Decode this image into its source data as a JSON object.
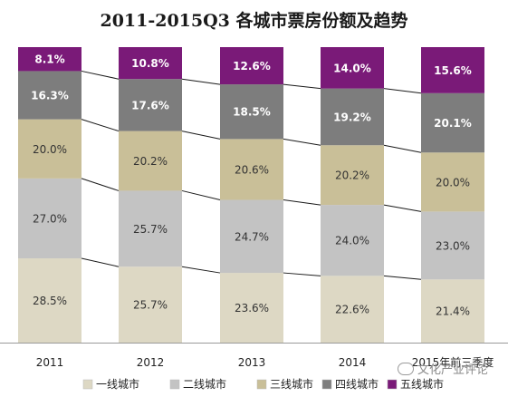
{
  "title": "2011-2015Q3 各城市票房份额及趋势",
  "watermark": "文化产业评论",
  "chart_data": {
    "type": "bar",
    "stacked": true,
    "categories": [
      "2011",
      "2012",
      "2013",
      "2014",
      "2015年前三季度"
    ],
    "series": [
      {
        "name": "一线城市",
        "color": "#ddd8c4",
        "values": [
          28.5,
          25.7,
          23.6,
          22.6,
          21.4
        ],
        "labels": [
          "28.5%",
          "25.7%",
          "23.6%",
          "22.6%",
          "21.4%"
        ]
      },
      {
        "name": "二线城市",
        "color": "#c3c3c3",
        "values": [
          27.0,
          25.7,
          24.7,
          24.0,
          23.0
        ],
        "labels": [
          "27.0%",
          "25.7%",
          "24.7%",
          "24.0%",
          "23.0%"
        ]
      },
      {
        "name": "三线城市",
        "color": "#c9bf98",
        "values": [
          20.0,
          20.2,
          20.6,
          20.2,
          20.0
        ],
        "labels": [
          "20.0%",
          "20.2%",
          "20.6%",
          "20.2%",
          "20.0%"
        ]
      },
      {
        "name": "四线城市",
        "color": "#7d7d7d",
        "values": [
          16.3,
          17.6,
          18.5,
          19.2,
          20.1
        ],
        "labels": [
          "16.3%",
          "17.6%",
          "18.5%",
          "19.2%",
          "20.1%"
        ]
      },
      {
        "name": "五线城市",
        "color": "#7a1a78",
        "values": [
          8.1,
          10.8,
          12.6,
          14.0,
          15.6
        ],
        "labels": [
          "8.1%",
          "10.8%",
          "12.6%",
          "14.0%",
          "15.6%"
        ]
      }
    ],
    "label_colors": [
      "#333333",
      "#333333",
      "#333333",
      "#ffffff",
      "#ffffff"
    ],
    "legend_placement": "bottom",
    "grid": false,
    "ylim": [
      0,
      100
    ]
  }
}
